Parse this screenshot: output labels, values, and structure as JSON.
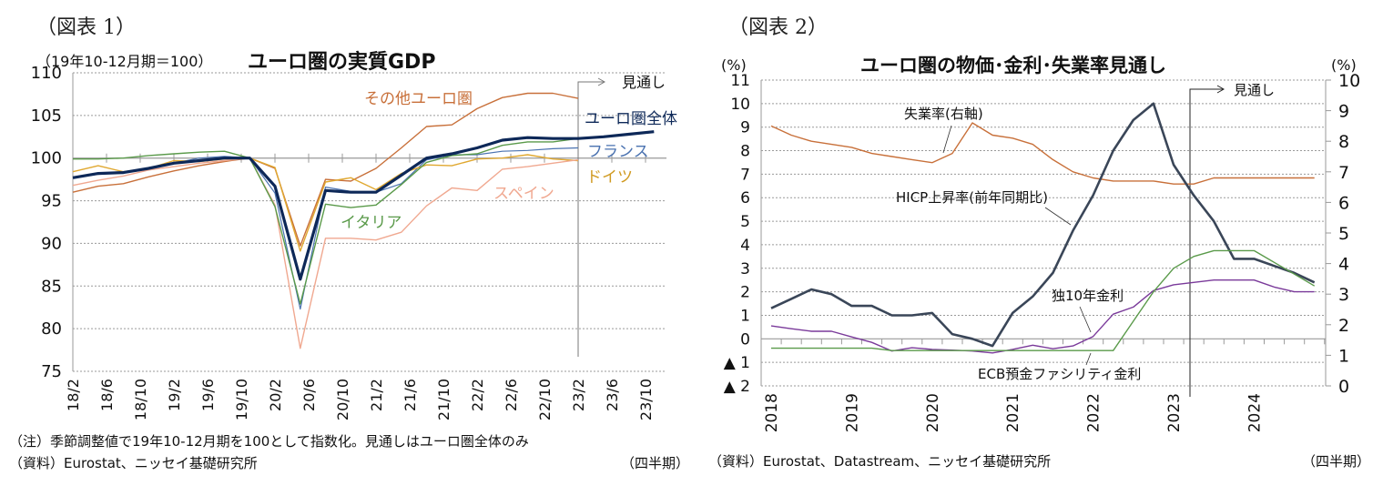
{
  "left": {
    "figure_label": "（図表 1）",
    "unit_note": "（19年10-12月期＝100）",
    "title": "ユーロ圏の実質GDP",
    "forecast_label": "見通し",
    "note": "（注）季節調整値で19年10-12月期を100として指数化。見通しはユーロ圏全体のみ",
    "source": "（資料）Eurostat、ニッセイ基礎研究所",
    "period_unit": "（四半期）"
  },
  "right": {
    "figure_label": "（図表 2）",
    "title": "ユーロ圏の物価･金利･失業率見通し",
    "left_unit": "(%)",
    "right_unit": "(%)",
    "forecast_label": "見通し",
    "source": "（資料）Eurostat、Datastream、ニッセイ基礎研究所",
    "period_unit": "（四半期）"
  },
  "chart_data": [
    {
      "type": "line",
      "title": "ユーロ圏の実質GDP",
      "ylabel": "（19年10-12月期＝100）",
      "xlabel": "（四半期）",
      "ylim": [
        75,
        110
      ],
      "yticks": [
        75,
        80,
        85,
        90,
        95,
        100,
        105,
        110
      ],
      "grid": true,
      "x": [
        "18/2",
        "18/5",
        "18/8",
        "18/11",
        "19/2",
        "19/5",
        "19/8",
        "19/11",
        "20/2",
        "20/5",
        "20/8",
        "20/11",
        "21/2",
        "21/5",
        "21/8",
        "21/11",
        "22/2",
        "22/5",
        "22/8",
        "22/11",
        "23/2",
        "23/5",
        "23/8",
        "23/11"
      ],
      "xtick_labels": [
        "18/2",
        "18/6",
        "18/10",
        "19/2",
        "19/6",
        "19/10",
        "20/2",
        "20/6",
        "20/10",
        "21/2",
        "21/6",
        "21/10",
        "22/2",
        "22/6",
        "22/10",
        "23/2",
        "23/6",
        "23/10"
      ],
      "forecast_start": "23/2",
      "series": [
        {
          "name": "その他ユーロ圏",
          "color": "#c8703a",
          "width": 1.4,
          "values": [
            96.0,
            96.7,
            97.0,
            97.8,
            98.5,
            99.1,
            99.6,
            100.0,
            98.8,
            89.7,
            97.5,
            97.3,
            98.8,
            101.2,
            103.7,
            103.9,
            105.8,
            107.1,
            107.6,
            107.6,
            107.0,
            null,
            null,
            null
          ]
        },
        {
          "name": "フランス",
          "color": "#4a72b0",
          "width": 1.2,
          "values": [
            97.7,
            98.1,
            98.3,
            98.8,
            99.4,
            100.0,
            100.2,
            100.0,
            95.9,
            82.3,
            96.6,
            96.1,
            96.0,
            97.0,
            99.8,
            100.4,
            100.4,
            100.8,
            100.9,
            101.1,
            101.2,
            null,
            null,
            null
          ]
        },
        {
          "name": "ドイツ",
          "color": "#e0a830",
          "width": 1.4,
          "values": [
            98.4,
            99.1,
            98.4,
            98.8,
            99.7,
            99.6,
            99.9,
            100.0,
            98.9,
            89.1,
            97.2,
            97.7,
            96.3,
            98.2,
            99.2,
            99.1,
            99.9,
            100.0,
            100.4,
            99.9,
            99.7,
            null,
            null,
            null
          ]
        },
        {
          "name": "スペイン",
          "color": "#f0a890",
          "width": 1.4,
          "values": [
            96.8,
            97.4,
            97.9,
            98.6,
            99.0,
            99.4,
            99.7,
            100.0,
            94.5,
            77.7,
            90.6,
            90.6,
            90.4,
            91.3,
            94.4,
            96.5,
            96.2,
            98.7,
            99.0,
            99.4,
            99.8,
            null,
            null,
            null
          ]
        },
        {
          "name": "イタリア",
          "color": "#5a9a4a",
          "width": 1.4,
          "values": [
            99.9,
            99.9,
            100.0,
            100.3,
            100.5,
            100.7,
            100.8,
            100.0,
            94.3,
            82.9,
            94.6,
            94.2,
            94.5,
            96.9,
            99.5,
            100.3,
            100.5,
            101.5,
            101.9,
            101.9,
            102.3,
            null,
            null,
            null
          ]
        },
        {
          "name": "ユーロ圏全体",
          "color": "#0d2858",
          "width": 3.2,
          "values": [
            97.7,
            98.2,
            98.3,
            98.8,
            99.4,
            99.7,
            100.0,
            100.0,
            96.7,
            85.8,
            96.2,
            96.0,
            96.0,
            98.0,
            100.0,
            100.5,
            101.2,
            102.1,
            102.4,
            102.3,
            102.3,
            102.5,
            102.8,
            103.1
          ]
        }
      ],
      "labels": [
        {
          "text": "その他ユーロ圏",
          "series": "その他ユーロ圏",
          "color": "#c8703a"
        },
        {
          "text": "ユーロ圏全体",
          "series": "ユーロ圏全体",
          "color": "#0d2858"
        },
        {
          "text": "フランス",
          "series": "フランス",
          "color": "#4a72b0"
        },
        {
          "text": "ドイツ",
          "series": "ドイツ",
          "color": "#d09a20"
        },
        {
          "text": "スペイン",
          "series": "スペイン",
          "color": "#f0a890"
        },
        {
          "text": "イタリア",
          "series": "イタリア",
          "color": "#5a9a4a"
        }
      ]
    },
    {
      "type": "line",
      "title": "ユーロ圏の物価･金利･失業率見通し",
      "ylabel_left": "(%)",
      "ylabel_right": "(%)",
      "xlabel": "（四半期）",
      "ylim_left": [
        -2,
        11
      ],
      "ylim_right": [
        0,
        10
      ],
      "yticks_left": [
        "▲ 2",
        "▲ 1",
        "0",
        "1",
        "2",
        "3",
        "4",
        "5",
        "6",
        "7",
        "8",
        "9",
        "10",
        "11"
      ],
      "yticks_right": [
        "0",
        "1",
        "2",
        "3",
        "4",
        "5",
        "6",
        "7",
        "8",
        "9",
        "10"
      ],
      "grid": true,
      "x_years": [
        "2018",
        "2019",
        "2020",
        "2021",
        "2022",
        "2023",
        "2024"
      ],
      "quarters_per_year": 4,
      "forecast_start": "2023Q2",
      "series": [
        {
          "name": "失業率(右軸)",
          "axis": "right",
          "color": "#c8703a",
          "width": 1.4,
          "values": [
            8.5,
            8.2,
            8.0,
            7.9,
            7.8,
            7.6,
            7.5,
            7.4,
            7.3,
            7.6,
            8.6,
            8.2,
            8.1,
            7.9,
            7.4,
            7.0,
            6.8,
            6.7,
            6.7,
            6.7,
            6.6,
            6.6,
            6.8,
            6.8,
            6.8,
            6.8,
            6.8,
            6.8
          ]
        },
        {
          "name": "HICP上昇率(前年同期比)",
          "axis": "left",
          "color": "#3a4658",
          "width": 2.6,
          "values": [
            1.3,
            1.7,
            2.1,
            1.9,
            1.4,
            1.4,
            1.0,
            1.0,
            1.1,
            0.2,
            0.0,
            -0.3,
            1.1,
            1.8,
            2.8,
            4.6,
            6.1,
            8.0,
            9.3,
            10.0,
            7.4,
            6.1,
            5.0,
            3.4,
            3.4,
            3.1,
            2.8,
            2.4
          ]
        },
        {
          "name": "独10年金利",
          "axis": "left",
          "color": "#7a3a9a",
          "width": 1.4,
          "values": [
            0.55,
            0.43,
            0.32,
            0.32,
            0.08,
            -0.15,
            -0.52,
            -0.38,
            -0.45,
            -0.48,
            -0.52,
            -0.6,
            -0.45,
            -0.27,
            -0.42,
            -0.3,
            0.1,
            1.05,
            1.35,
            2.05,
            2.3,
            2.4,
            2.5,
            2.5,
            2.5,
            2.2,
            2.0,
            2.0
          ]
        },
        {
          "name": "ECB預金ファシリティ金利",
          "axis": "left",
          "color": "#5a9a4a",
          "width": 1.4,
          "values": [
            -0.4,
            -0.4,
            -0.4,
            -0.4,
            -0.4,
            -0.4,
            -0.5,
            -0.5,
            -0.5,
            -0.5,
            -0.5,
            -0.5,
            -0.5,
            -0.5,
            -0.5,
            -0.5,
            -0.5,
            -0.5,
            0.75,
            2.0,
            3.0,
            3.5,
            3.75,
            3.75,
            3.75,
            3.25,
            2.75,
            2.25
          ]
        }
      ],
      "annotations": [
        {
          "text": "失業率(右軸)"
        },
        {
          "text": "HICP上昇率(前年同期比)"
        },
        {
          "text": "独10年金利"
        },
        {
          "text": "ECB預金ファシリティ金利"
        }
      ]
    }
  ]
}
